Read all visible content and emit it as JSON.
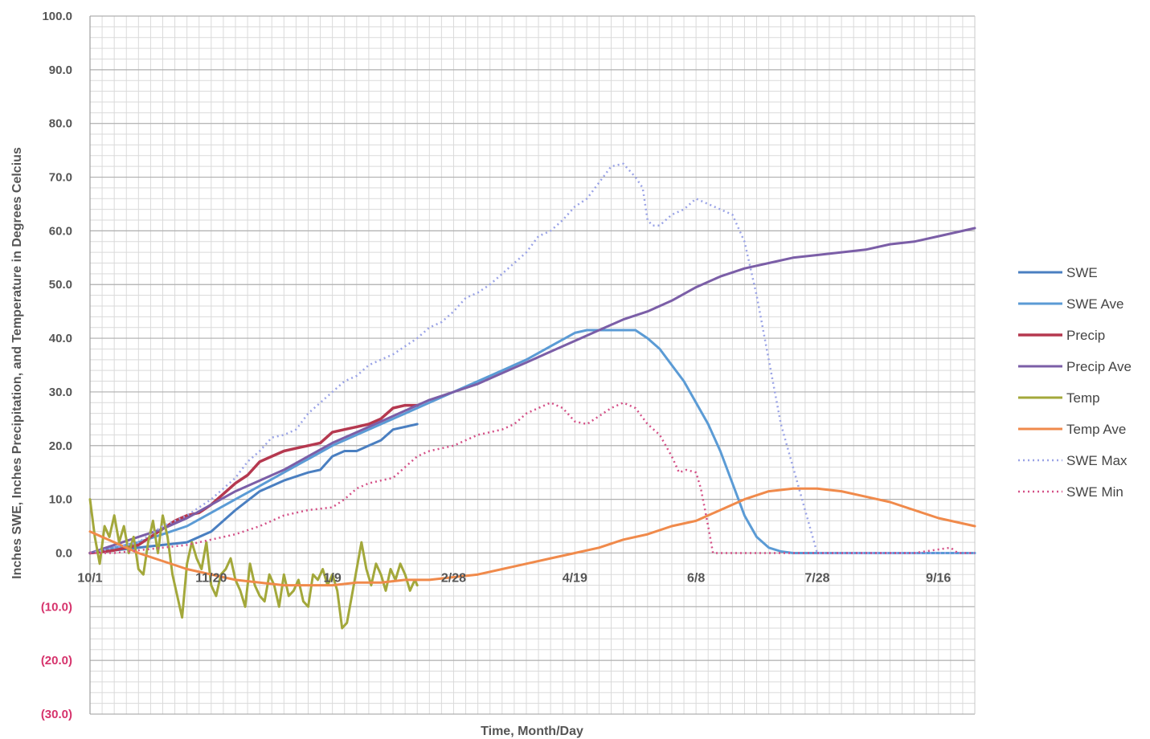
{
  "chart_data": {
    "type": "line",
    "xlabel": "Time, Month/Day",
    "ylabel": "Inches SWE, Inches Precipitation, and Temperature in Degrees Celcius",
    "x_unit": "day of water year (Oct 1 = day 0)",
    "xlim": [
      0,
      365
    ],
    "ylim": [
      -30,
      100
    ],
    "y_ticks": [
      {
        "value": 100,
        "label": "100.0",
        "color": "#555555"
      },
      {
        "value": 90,
        "label": "90.0",
        "color": "#555555"
      },
      {
        "value": 80,
        "label": "80.0",
        "color": "#555555"
      },
      {
        "value": 70,
        "label": "70.0",
        "color": "#555555"
      },
      {
        "value": 60,
        "label": "60.0",
        "color": "#555555"
      },
      {
        "value": 50,
        "label": "50.0",
        "color": "#555555"
      },
      {
        "value": 40,
        "label": "40.0",
        "color": "#555555"
      },
      {
        "value": 30,
        "label": "30.0",
        "color": "#555555"
      },
      {
        "value": 20,
        "label": "20.0",
        "color": "#555555"
      },
      {
        "value": 10,
        "label": "10.0",
        "color": "#555555"
      },
      {
        "value": 0,
        "label": "0.0",
        "color": "#555555"
      },
      {
        "value": -10,
        "label": "(10.0)",
        "color": "#d6336c"
      },
      {
        "value": -20,
        "label": "(20.0)",
        "color": "#d6336c"
      },
      {
        "value": -30,
        "label": "(30.0)",
        "color": "#d6336c"
      }
    ],
    "x_ticks": [
      {
        "day": 0,
        "label": "10/1"
      },
      {
        "day": 50,
        "label": "11/20"
      },
      {
        "day": 100,
        "label": "1/9"
      },
      {
        "day": 150,
        "label": "2/28"
      },
      {
        "day": 200,
        "label": "4/19"
      },
      {
        "day": 250,
        "label": "6/8"
      },
      {
        "day": 300,
        "label": "7/28"
      },
      {
        "day": 350,
        "label": "9/16"
      }
    ],
    "grid": true,
    "legend_position": "right",
    "series": [
      {
        "name": "SWE",
        "color": "#4a7fc1",
        "dash": "solid",
        "width": 3,
        "x": [
          0,
          10,
          20,
          30,
          40,
          50,
          60,
          70,
          80,
          90,
          95,
          100,
          105,
          110,
          115,
          120,
          125,
          130,
          135
        ],
        "y": [
          0,
          0.5,
          1,
          1.5,
          2,
          4,
          8,
          11.5,
          13.5,
          15,
          15.5,
          18,
          19,
          19,
          20,
          21,
          23,
          23.5,
          24
        ]
      },
      {
        "name": "SWE Ave",
        "color": "#5b9bd5",
        "dash": "solid",
        "width": 3,
        "x": [
          0,
          10,
          20,
          30,
          40,
          50,
          60,
          70,
          80,
          90,
          100,
          110,
          120,
          130,
          140,
          150,
          160,
          170,
          180,
          190,
          200,
          205,
          210,
          215,
          220,
          225,
          230,
          235,
          240,
          245,
          250,
          255,
          260,
          265,
          270,
          275,
          280,
          285,
          290,
          295,
          300,
          310,
          320,
          340,
          365
        ],
        "y": [
          0,
          1,
          2,
          3.5,
          5,
          7.5,
          10,
          12.5,
          15,
          17.5,
          20,
          22,
          24,
          26,
          28,
          30,
          32,
          34,
          36,
          38.5,
          41,
          41.5,
          41.5,
          41.5,
          41.5,
          41.5,
          40,
          38,
          35,
          32,
          28,
          24,
          19,
          13,
          7,
          3,
          1,
          0.3,
          0,
          0,
          0,
          0,
          0,
          0,
          0
        ]
      },
      {
        "name": "Precip",
        "color": "#b5384f",
        "dash": "solid",
        "width": 3.5,
        "x": [
          0,
          10,
          20,
          25,
          30,
          35,
          40,
          45,
          50,
          55,
          60,
          65,
          70,
          75,
          80,
          85,
          90,
          95,
          100,
          105,
          110,
          115,
          120,
          125,
          130,
          135
        ],
        "y": [
          0,
          0.5,
          1.5,
          3,
          4.5,
          6,
          7,
          7.5,
          9,
          11,
          13,
          14.5,
          17,
          18,
          19,
          19.5,
          20,
          20.5,
          22.5,
          23,
          23.5,
          24,
          25,
          27,
          27.5,
          27.5
        ]
      },
      {
        "name": "Precip Ave",
        "color": "#7b5ea7",
        "dash": "solid",
        "width": 3,
        "x": [
          0,
          10,
          20,
          30,
          40,
          50,
          60,
          70,
          80,
          90,
          100,
          110,
          120,
          130,
          140,
          150,
          160,
          170,
          180,
          190,
          200,
          210,
          220,
          230,
          240,
          250,
          260,
          270,
          280,
          290,
          300,
          310,
          320,
          330,
          340,
          350,
          365
        ],
        "y": [
          0,
          1.5,
          3,
          4.5,
          6.5,
          9,
          11.5,
          13.5,
          15.5,
          18,
          20.5,
          22.5,
          24.5,
          26.5,
          28.5,
          30,
          31.5,
          33.5,
          35.5,
          37.5,
          39.5,
          41.5,
          43.5,
          45,
          47,
          49.5,
          51.5,
          53,
          54,
          55,
          55.5,
          56,
          56.5,
          57.5,
          58,
          59,
          60.5
        ]
      },
      {
        "name": "Temp",
        "color": "#a3a83b",
        "dash": "solid",
        "width": 3,
        "x": [
          0,
          2,
          4,
          6,
          8,
          10,
          12,
          14,
          16,
          18,
          20,
          22,
          24,
          26,
          28,
          30,
          32,
          34,
          36,
          38,
          40,
          42,
          44,
          46,
          48,
          50,
          52,
          54,
          56,
          58,
          60,
          62,
          64,
          66,
          68,
          70,
          72,
          74,
          76,
          78,
          80,
          82,
          84,
          86,
          88,
          90,
          92,
          94,
          96,
          98,
          100,
          102,
          104,
          106,
          108,
          110,
          112,
          114,
          116,
          118,
          120,
          122,
          124,
          126,
          128,
          130,
          132,
          134,
          135
        ],
        "y": [
          10,
          3,
          -2,
          5,
          3,
          7,
          2,
          5,
          0,
          3,
          -3,
          -4,
          2,
          6,
          0,
          7,
          3,
          -4,
          -8,
          -12,
          -2,
          2,
          -1,
          -3,
          2,
          -6,
          -8,
          -4,
          -3,
          -1,
          -5,
          -7,
          -10,
          -2,
          -6,
          -8,
          -9,
          -4,
          -6,
          -10,
          -4,
          -8,
          -7,
          -5,
          -9,
          -10,
          -4,
          -5,
          -3,
          -6,
          -4,
          -7,
          -14,
          -13,
          -8,
          -3,
          2,
          -3,
          -6,
          -2,
          -4,
          -7,
          -3,
          -5,
          -2,
          -4,
          -7,
          -5,
          -6
        ]
      },
      {
        "name": "Temp Ave",
        "color": "#f08a4b",
        "dash": "solid",
        "width": 3,
        "x": [
          0,
          10,
          20,
          30,
          40,
          50,
          60,
          70,
          80,
          90,
          100,
          110,
          120,
          130,
          140,
          150,
          160,
          170,
          180,
          190,
          200,
          210,
          220,
          230,
          240,
          250,
          260,
          270,
          280,
          290,
          300,
          310,
          320,
          330,
          340,
          350,
          365
        ],
        "y": [
          4,
          2,
          0,
          -1.5,
          -3,
          -4,
          -5,
          -5.5,
          -6,
          -6,
          -6,
          -5.5,
          -5.5,
          -5,
          -5,
          -4.5,
          -4,
          -3,
          -2,
          -1,
          0,
          1,
          2.5,
          3.5,
          5,
          6,
          8,
          10,
          11.5,
          12,
          12,
          11.5,
          10.5,
          9.5,
          8,
          6.5,
          5
        ]
      },
      {
        "name": "SWE Max",
        "color": "#9aa3e6",
        "dash": "dotted",
        "width": 2.5,
        "x": [
          0,
          10,
          20,
          30,
          40,
          50,
          55,
          60,
          65,
          70,
          75,
          80,
          85,
          90,
          95,
          100,
          105,
          110,
          115,
          120,
          125,
          130,
          135,
          140,
          145,
          150,
          155,
          160,
          165,
          170,
          175,
          180,
          185,
          190,
          195,
          200,
          205,
          210,
          215,
          220,
          225,
          228,
          230,
          232,
          235,
          240,
          245,
          250,
          255,
          260,
          265,
          270,
          275,
          280,
          285,
          290,
          295,
          300,
          302,
          310,
          320,
          340,
          365
        ],
        "y": [
          0,
          1,
          2,
          5,
          7,
          10,
          12,
          14,
          17,
          19,
          21.5,
          22,
          23,
          26,
          28,
          30,
          32,
          33,
          35,
          36,
          37,
          38.5,
          40,
          42,
          43,
          45,
          47.5,
          48.5,
          50,
          52,
          54,
          56,
          59,
          60,
          62,
          64.5,
          66,
          69,
          72,
          72.5,
          70,
          68,
          62,
          61,
          61,
          63,
          64,
          66,
          65,
          64,
          63,
          58,
          48,
          36,
          24,
          16,
          8,
          0,
          0,
          0,
          0,
          0,
          0
        ]
      },
      {
        "name": "SWE Min",
        "color": "#d45087",
        "dash": "dotted",
        "width": 2.5,
        "x": [
          0,
          10,
          20,
          30,
          40,
          50,
          60,
          70,
          80,
          90,
          100,
          105,
          110,
          115,
          120,
          125,
          130,
          135,
          140,
          145,
          150,
          155,
          160,
          165,
          170,
          175,
          180,
          185,
          190,
          195,
          200,
          205,
          210,
          215,
          220,
          225,
          230,
          235,
          240,
          243,
          246,
          250,
          252,
          255,
          257,
          260,
          270,
          280,
          300,
          320,
          340,
          355,
          358,
          365
        ],
        "y": [
          0,
          0,
          0.5,
          1,
          1.5,
          2.5,
          3.5,
          5,
          7,
          8,
          8.5,
          10,
          12,
          13,
          13.5,
          14,
          16,
          18,
          19,
          19.5,
          20,
          21,
          22,
          22.5,
          23,
          24,
          26,
          27,
          28,
          27,
          24.5,
          24,
          25.5,
          27,
          28,
          27,
          24,
          22,
          18,
          15,
          15.5,
          15,
          12,
          5,
          0,
          0,
          0,
          0,
          0,
          0,
          0,
          1,
          0,
          0
        ]
      }
    ]
  }
}
